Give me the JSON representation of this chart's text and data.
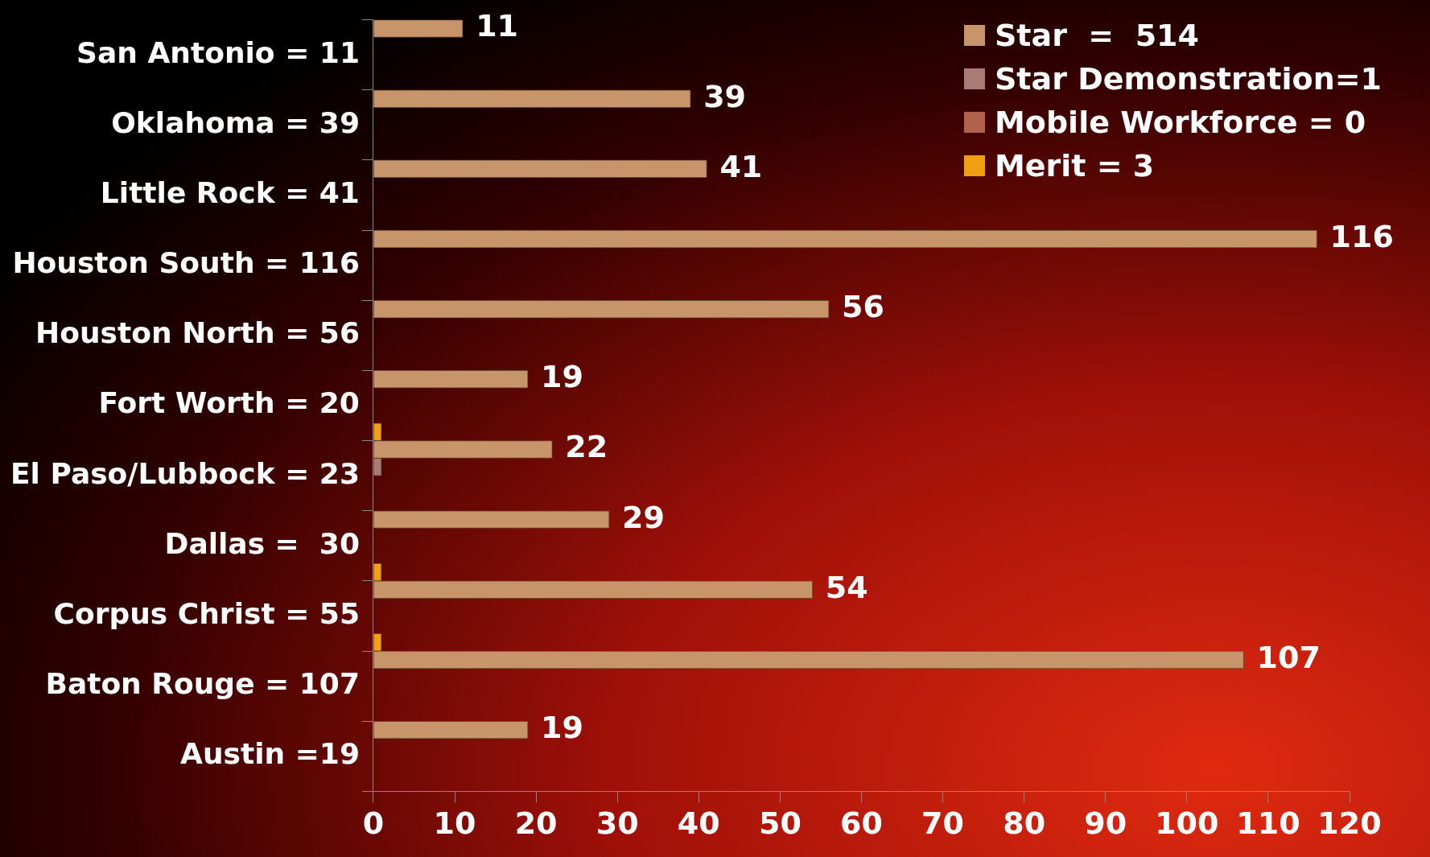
{
  "chart_data": {
    "type": "bar",
    "orientation": "horizontal",
    "categories": [
      "San Antonio = 11",
      "Oklahoma = 39",
      "Little Rock = 41",
      "Houston South = 116",
      "Houston North = 56",
      "Fort Worth = 20",
      "El Paso/Lubbock = 23",
      "Dallas =  30",
      "Corpus Christ = 55",
      "Baton Rouge = 107",
      "Austin =19"
    ],
    "series": [
      {
        "name": "Star  =  514",
        "color": "#c8956a",
        "values": [
          11,
          39,
          41,
          116,
          56,
          19,
          22,
          29,
          54,
          107,
          19
        ],
        "value_labels": [
          "11",
          "39",
          "41",
          "116",
          "56",
          "19",
          "22",
          "29",
          "54",
          "107",
          "19"
        ]
      },
      {
        "name": "Star Demonstration=1",
        "color": "#a87b74",
        "values": [
          0,
          0,
          0,
          0,
          0,
          0,
          1,
          0,
          0,
          0,
          0
        ]
      },
      {
        "name": "Mobile Workforce = 0",
        "color": "#b0624a",
        "values": [
          0,
          0,
          0,
          0,
          0,
          0,
          0,
          0,
          0,
          0,
          0
        ]
      },
      {
        "name": "Merit = 3",
        "color": "#f0a010",
        "values": [
          0,
          0,
          0,
          0,
          0,
          1,
          0,
          1,
          1,
          0,
          0
        ]
      }
    ],
    "xlim": [
      0,
      120
    ],
    "xticks": [
      0,
      10,
      20,
      30,
      40,
      50,
      60,
      70,
      80,
      90,
      100,
      110,
      120
    ],
    "grid": false,
    "legend": "top right"
  }
}
